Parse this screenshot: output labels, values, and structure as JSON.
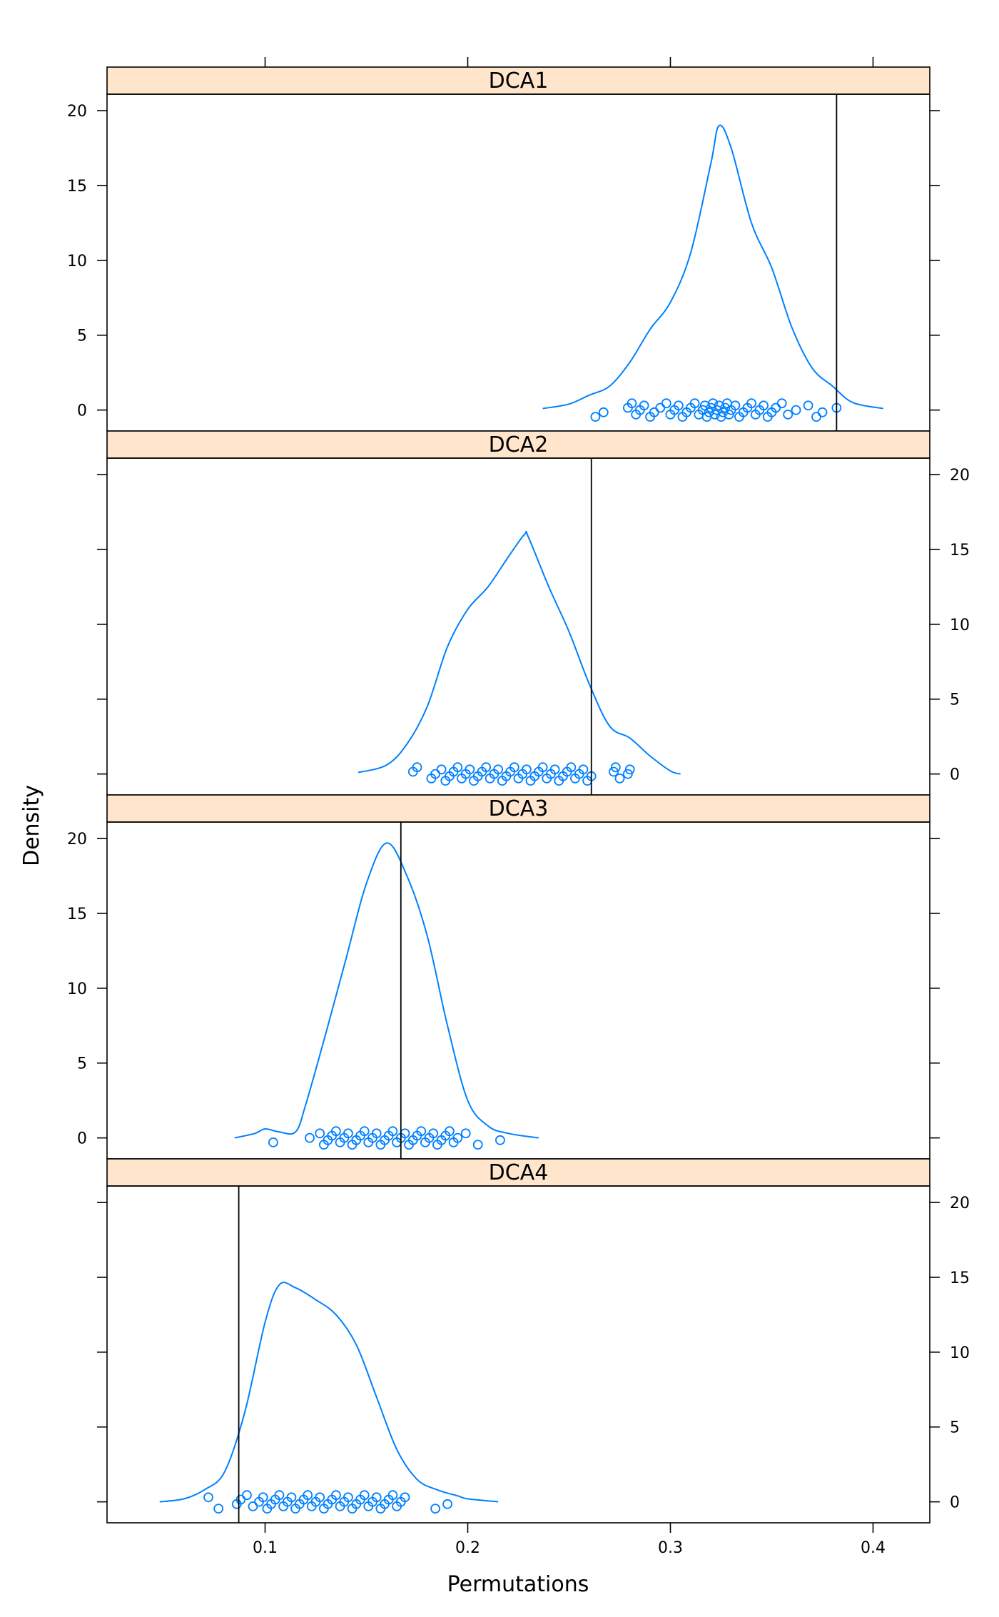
{
  "chart_data": {
    "type": "density",
    "xlabel": "Permutations",
    "ylabel": "Density",
    "xlim": [
      0.022,
      0.428
    ],
    "ylim": [
      -1.4,
      21.1
    ],
    "x_ticks": [
      0.1,
      0.2,
      0.3,
      0.4
    ],
    "x_tick_labels": [
      "0.1",
      "0.2",
      "0.3",
      "0.4"
    ],
    "y_ticks": [
      0,
      5,
      10,
      15,
      20
    ],
    "y_tick_labels": [
      "0",
      "5",
      "10",
      "15",
      "20"
    ],
    "colors": {
      "curve": "#0080ff",
      "points": "#0080ff",
      "strip_fill": "#ffe5cc",
      "reference_line": "#000000"
    },
    "panels": [
      {
        "name": "DCA1",
        "observed": 0.382,
        "curve": [
          [
            0.237,
            0.1
          ],
          [
            0.25,
            0.4
          ],
          [
            0.26,
            1.0
          ],
          [
            0.27,
            1.6
          ],
          [
            0.28,
            3.2
          ],
          [
            0.29,
            5.4
          ],
          [
            0.3,
            7.2
          ],
          [
            0.31,
            10.5
          ],
          [
            0.32,
            16.5
          ],
          [
            0.324,
            19.0
          ],
          [
            0.33,
            17.5
          ],
          [
            0.34,
            12.5
          ],
          [
            0.35,
            9.5
          ],
          [
            0.36,
            5.5
          ],
          [
            0.37,
            2.8
          ],
          [
            0.38,
            1.6
          ],
          [
            0.39,
            0.5
          ],
          [
            0.405,
            0.1
          ]
        ],
        "points": [
          0.263,
          0.267,
          0.279,
          0.281,
          0.283,
          0.285,
          0.287,
          0.29,
          0.292,
          0.295,
          0.298,
          0.3,
          0.302,
          0.304,
          0.306,
          0.308,
          0.31,
          0.312,
          0.314,
          0.316,
          0.317,
          0.318,
          0.319,
          0.32,
          0.321,
          0.322,
          0.323,
          0.324,
          0.325,
          0.326,
          0.327,
          0.328,
          0.329,
          0.33,
          0.332,
          0.334,
          0.336,
          0.338,
          0.34,
          0.342,
          0.344,
          0.346,
          0.348,
          0.35,
          0.352,
          0.355,
          0.358,
          0.362,
          0.368,
          0.372,
          0.375,
          0.382
        ]
      },
      {
        "name": "DCA2",
        "observed": 0.261,
        "curve": [
          [
            0.146,
            0.1
          ],
          [
            0.16,
            0.6
          ],
          [
            0.17,
            2.0
          ],
          [
            0.18,
            4.5
          ],
          [
            0.19,
            8.5
          ],
          [
            0.2,
            11.0
          ],
          [
            0.21,
            12.5
          ],
          [
            0.22,
            14.5
          ],
          [
            0.228,
            16.0
          ],
          [
            0.23,
            15.8
          ],
          [
            0.24,
            12.5
          ],
          [
            0.25,
            9.5
          ],
          [
            0.26,
            6.0
          ],
          [
            0.27,
            3.2
          ],
          [
            0.28,
            2.4
          ],
          [
            0.29,
            1.2
          ],
          [
            0.3,
            0.2
          ],
          [
            0.305,
            0.0
          ]
        ],
        "points": [
          0.173,
          0.175,
          0.182,
          0.184,
          0.187,
          0.189,
          0.191,
          0.193,
          0.195,
          0.197,
          0.199,
          0.201,
          0.203,
          0.205,
          0.207,
          0.209,
          0.211,
          0.213,
          0.215,
          0.217,
          0.219,
          0.221,
          0.223,
          0.225,
          0.227,
          0.229,
          0.231,
          0.233,
          0.235,
          0.237,
          0.239,
          0.241,
          0.243,
          0.245,
          0.247,
          0.249,
          0.251,
          0.253,
          0.255,
          0.257,
          0.259,
          0.261,
          0.272,
          0.273,
          0.275,
          0.279,
          0.28
        ]
      },
      {
        "name": "DCA3",
        "observed": 0.167,
        "curve": [
          [
            0.085,
            0.0
          ],
          [
            0.095,
            0.3
          ],
          [
            0.1,
            0.6
          ],
          [
            0.107,
            0.4
          ],
          [
            0.115,
            0.4
          ],
          [
            0.12,
            2.2
          ],
          [
            0.13,
            7.0
          ],
          [
            0.14,
            12.0
          ],
          [
            0.15,
            17.0
          ],
          [
            0.16,
            19.7
          ],
          [
            0.17,
            17.5
          ],
          [
            0.18,
            13.5
          ],
          [
            0.19,
            7.5
          ],
          [
            0.2,
            2.5
          ],
          [
            0.21,
            0.8
          ],
          [
            0.22,
            0.3
          ],
          [
            0.235,
            0.0
          ]
        ],
        "points": [
          0.104,
          0.122,
          0.127,
          0.129,
          0.131,
          0.133,
          0.135,
          0.137,
          0.139,
          0.141,
          0.143,
          0.145,
          0.147,
          0.149,
          0.151,
          0.153,
          0.155,
          0.157,
          0.159,
          0.161,
          0.163,
          0.165,
          0.167,
          0.169,
          0.171,
          0.173,
          0.175,
          0.177,
          0.179,
          0.181,
          0.183,
          0.185,
          0.187,
          0.189,
          0.191,
          0.193,
          0.195,
          0.199,
          0.205,
          0.216
        ]
      },
      {
        "name": "DCA4",
        "observed": 0.087,
        "curve": [
          [
            0.048,
            0.0
          ],
          [
            0.06,
            0.2
          ],
          [
            0.07,
            0.8
          ],
          [
            0.08,
            2.0
          ],
          [
            0.09,
            6.0
          ],
          [
            0.1,
            12.0
          ],
          [
            0.107,
            14.5
          ],
          [
            0.115,
            14.3
          ],
          [
            0.125,
            13.5
          ],
          [
            0.135,
            12.5
          ],
          [
            0.145,
            10.5
          ],
          [
            0.155,
            7.0
          ],
          [
            0.165,
            3.5
          ],
          [
            0.175,
            1.5
          ],
          [
            0.185,
            0.8
          ],
          [
            0.195,
            0.4
          ],
          [
            0.2,
            0.2
          ],
          [
            0.215,
            0.0
          ]
        ],
        "points": [
          0.072,
          0.077,
          0.086,
          0.088,
          0.091,
          0.094,
          0.097,
          0.099,
          0.101,
          0.103,
          0.105,
          0.107,
          0.109,
          0.111,
          0.113,
          0.115,
          0.117,
          0.119,
          0.121,
          0.123,
          0.125,
          0.127,
          0.129,
          0.131,
          0.133,
          0.135,
          0.137,
          0.139,
          0.141,
          0.143,
          0.145,
          0.147,
          0.149,
          0.151,
          0.153,
          0.155,
          0.157,
          0.159,
          0.161,
          0.163,
          0.165,
          0.167,
          0.169,
          0.184,
          0.19
        ]
      }
    ]
  }
}
